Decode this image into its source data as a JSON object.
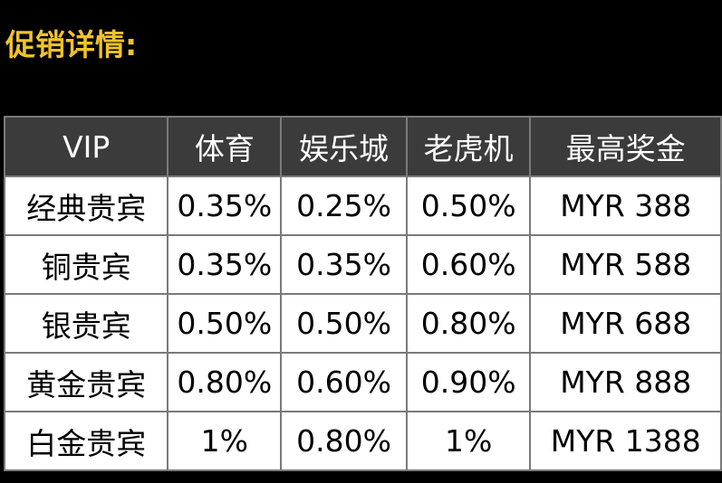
{
  "title": "促销详情:",
  "colors": {
    "title": "#f0c22c",
    "header_bg": "#3b3b3b",
    "border": "#7a7a7a"
  },
  "table": {
    "headers": [
      "VIP",
      "体育",
      "娱乐城",
      "老虎机",
      "最高奖金"
    ],
    "rows": [
      [
        "经典贵宾",
        "0.35%",
        "0.25%",
        "0.50%",
        "MYR 388"
      ],
      [
        "铜贵宾",
        "0.35%",
        "0.35%",
        "0.60%",
        "MYR 588"
      ],
      [
        "银贵宾",
        "0.50%",
        "0.50%",
        "0.80%",
        "MYR 688"
      ],
      [
        "黄金贵宾",
        "0.80%",
        "0.60%",
        "0.90%",
        "MYR 888"
      ],
      [
        "白金贵宾",
        "1%",
        "0.80%",
        "1%",
        "MYR 1388"
      ]
    ]
  }
}
